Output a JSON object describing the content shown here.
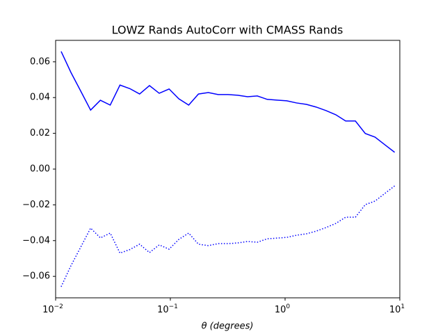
{
  "chart_data": {
    "type": "line",
    "title": "LOWZ Rands AutoCorr with CMASS Rands",
    "xlabel": "θ (degrees)",
    "x": [
      0.01117,
      0.01361,
      0.01656,
      0.02018,
      0.02455,
      0.02992,
      0.03639,
      0.04436,
      0.05395,
      0.06577,
      0.07998,
      0.0975,
      0.1186,
      0.1445,
      0.1758,
      0.2143,
      0.2606,
      0.3177,
      0.3864,
      0.471,
      0.5728,
      0.6982,
      0.8492,
      1.035,
      1.259,
      1.535,
      1.866,
      2.275,
      2.767,
      3.373,
      4.102,
      5.0,
      6.081,
      7.413,
      9.016
    ],
    "series": [
      {
        "color": "#0000ff",
        "linestyle": "solid",
        "values": [
          0.0658,
          0.054,
          0.0436,
          0.033,
          0.0385,
          0.0358,
          0.047,
          0.045,
          0.042,
          0.0467,
          0.0424,
          0.0448,
          0.0393,
          0.0358,
          0.042,
          0.0428,
          0.0417,
          0.0417,
          0.0413,
          0.0405,
          0.0409,
          0.039,
          0.0386,
          0.0382,
          0.037,
          0.0362,
          0.0347,
          0.0327,
          0.0304,
          0.0269,
          0.0269,
          0.0199,
          0.0179,
          0.0136,
          0.0094
        ]
      },
      {
        "color": "#0000ff",
        "linestyle": "dotted",
        "values": [
          -0.0658,
          -0.054,
          -0.0436,
          -0.033,
          -0.0385,
          -0.0358,
          -0.047,
          -0.045,
          -0.042,
          -0.0467,
          -0.0424,
          -0.0448,
          -0.0393,
          -0.0358,
          -0.042,
          -0.0428,
          -0.0417,
          -0.0417,
          -0.0413,
          -0.0405,
          -0.0409,
          -0.039,
          -0.0386,
          -0.0382,
          -0.037,
          -0.0362,
          -0.0347,
          -0.0327,
          -0.0304,
          -0.0269,
          -0.0269,
          -0.0199,
          -0.0179,
          -0.0136,
          -0.0094
        ]
      }
    ],
    "xlog": true,
    "xlim": [
      0.01,
      10
    ],
    "xticks": [
      {
        "value": 0.01,
        "label": "10",
        "sup": "−2"
      },
      {
        "value": 0.1,
        "label": "10",
        "sup": "−1"
      },
      {
        "value": 1,
        "label": "10",
        "sup": "0"
      },
      {
        "value": 10,
        "label": "10",
        "sup": "1"
      }
    ],
    "ylim": [
      -0.072,
      0.072
    ],
    "yticks": [
      {
        "value": -0.06,
        "label": "−0.06"
      },
      {
        "value": -0.04,
        "label": "−0.04"
      },
      {
        "value": -0.02,
        "label": "−0.02"
      },
      {
        "value": 0,
        "label": "0.00"
      },
      0.02,
      0.04,
      0.06
    ]
  }
}
